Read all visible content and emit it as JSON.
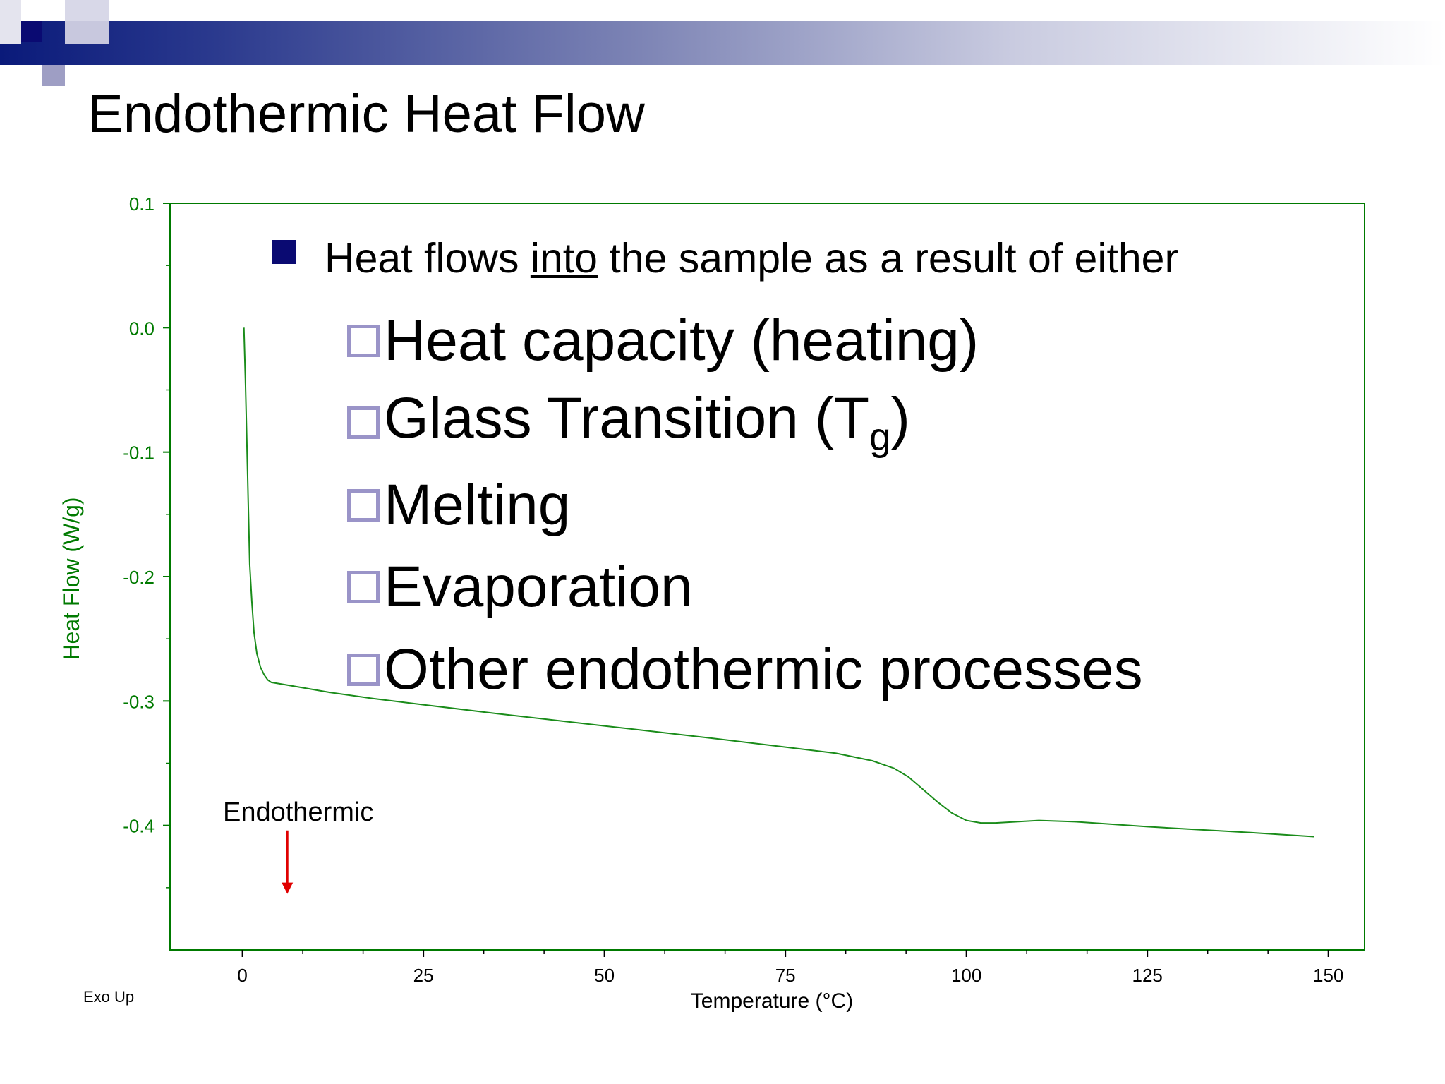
{
  "slide": {
    "title": "Endothermic Heat Flow",
    "accent_color": "#0a0a72",
    "checkbox_color": "#9a94c8"
  },
  "bullets": {
    "main_prefix": "Heat flows ",
    "main_emphasis": "into",
    "main_suffix": " the sample as a result of either",
    "items": [
      "Heat capacity (heating)",
      "Glass Transition (T",
      "Melting",
      "Evaporation",
      "Other endothermic processes"
    ],
    "glass_subscript": "g",
    "glass_close": ")"
  },
  "chart_data": {
    "type": "line",
    "xlabel": "Temperature (°C)",
    "ylabel": "Heat Flow (W/g)",
    "xlim": [
      -10,
      155
    ],
    "ylim": [
      -0.5,
      0.1
    ],
    "xticks": [
      "0",
      "25",
      "50",
      "75",
      "100",
      "125",
      "150"
    ],
    "xtick_values": [
      0,
      25,
      50,
      75,
      100,
      125,
      150
    ],
    "yticks": [
      "0.1",
      "0.0",
      "-0.1",
      "-0.2",
      "-0.3",
      "-0.4"
    ],
    "ytick_values": [
      0.1,
      0.0,
      -0.1,
      -0.2,
      -0.3,
      -0.4
    ],
    "axis_color": "#007a00",
    "line_color": "#1a8c1a",
    "corner_label": "Exo Up",
    "annotation": {
      "text": "Endothermic",
      "x": 6.2,
      "y_from": -0.404,
      "y_to": -0.455,
      "color": "#e00000"
    },
    "series": [
      {
        "x": [
          0.2,
          0.4,
          0.6,
          0.8,
          1.0,
          1.3,
          1.6,
          2.0,
          2.5,
          3.0,
          3.5,
          4.0,
          5,
          8,
          12,
          18,
          25,
          35,
          50,
          65,
          75,
          82,
          87,
          90,
          92,
          94,
          96,
          98,
          100,
          102,
          104,
          107,
          110,
          115,
          125,
          140,
          148
        ],
        "y": [
          0.0,
          -0.04,
          -0.09,
          -0.14,
          -0.19,
          -0.22,
          -0.245,
          -0.262,
          -0.273,
          -0.279,
          -0.283,
          -0.285,
          -0.286,
          -0.289,
          -0.293,
          -0.298,
          -0.303,
          -0.31,
          -0.32,
          -0.33,
          -0.337,
          -0.342,
          -0.348,
          -0.354,
          -0.361,
          -0.371,
          -0.381,
          -0.39,
          -0.396,
          -0.398,
          -0.398,
          -0.397,
          -0.396,
          -0.397,
          -0.401,
          -0.406,
          -0.409
        ]
      }
    ]
  }
}
